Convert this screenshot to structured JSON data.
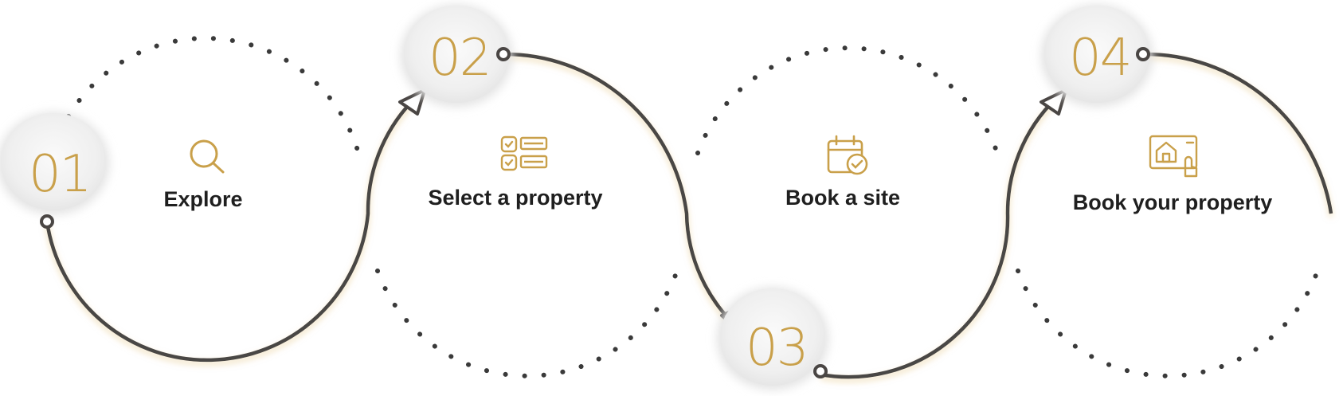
{
  "colors": {
    "gold": "#c9a04a",
    "line": "#4a4644",
    "dots": "#3a3a3a",
    "text": "#1f1f1f",
    "badge": "#ececec"
  },
  "steps": [
    {
      "number": "01",
      "label": "Explore",
      "icon": "search-icon"
    },
    {
      "number": "02",
      "label": "Select a property",
      "icon": "property-list-icon"
    },
    {
      "number": "03",
      "label": "Book a site",
      "icon": "calendar-check-icon"
    },
    {
      "number": "04",
      "label": "Book your property",
      "icon": "house-touch-icon"
    }
  ]
}
